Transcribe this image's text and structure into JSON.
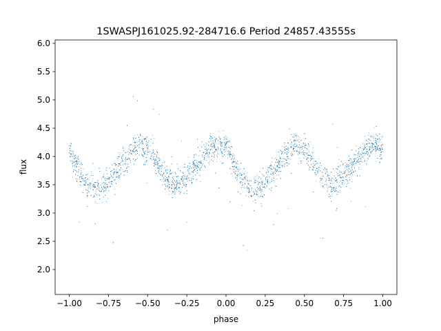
{
  "chart_data": {
    "type": "scatter",
    "title": "1SWASPJ161025.92-284716.6 Period 24857.43555s",
    "xlabel": "phase",
    "ylabel": "flux",
    "xlim": [
      -1.09,
      1.09
    ],
    "ylim": [
      1.56,
      6.06
    ],
    "xticks": [
      -1.0,
      -0.75,
      -0.5,
      -0.25,
      0.0,
      0.25,
      0.5,
      0.75,
      1.0
    ],
    "xtick_labels": [
      "−1.00",
      "−0.75",
      "−0.50",
      "−0.25",
      "0.00",
      "0.25",
      "0.50",
      "0.75",
      "1.00"
    ],
    "yticks": [
      2.0,
      2.5,
      3.0,
      3.5,
      4.0,
      4.5,
      5.0,
      5.5,
      6.0
    ],
    "ytick_labels": [
      "2.0",
      "2.5",
      "3.0",
      "3.5",
      "4.0",
      "4.5",
      "5.0",
      "5.5",
      "6.0"
    ],
    "grid": false,
    "marker_color": "#1f77b4",
    "series": [
      {
        "description_points": "dense folded light curve, phase -1 to 1, two cycles per unit phase",
        "x": [
          -1.0,
          -0.9,
          -0.83,
          -0.75,
          -0.6,
          -0.55,
          -0.5,
          -0.4,
          -0.33,
          -0.25,
          -0.1,
          -0.05,
          0.0,
          0.1,
          0.17,
          0.25,
          0.4,
          0.45,
          0.5,
          0.6,
          0.67,
          0.75,
          0.9,
          0.95,
          1.0
        ],
        "y": [
          4.1,
          3.55,
          3.4,
          3.55,
          4.1,
          4.2,
          4.15,
          3.7,
          3.5,
          3.65,
          4.15,
          4.2,
          4.15,
          3.6,
          3.4,
          3.55,
          4.1,
          4.2,
          4.15,
          3.7,
          3.5,
          3.65,
          4.15,
          4.2,
          4.1
        ]
      }
    ]
  }
}
